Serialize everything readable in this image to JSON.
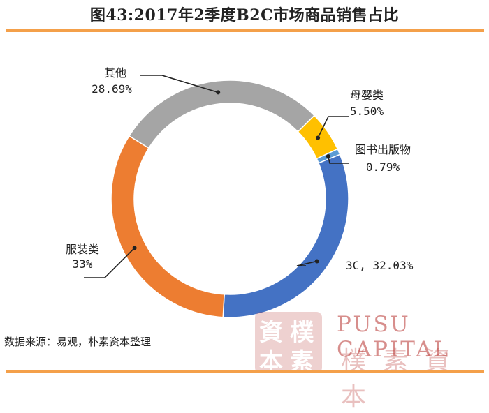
{
  "title": "图43:2017年2季度B2C市场商品销售占比",
  "source_note": "数据来源：易观，朴素资本整理",
  "watermark": {
    "seal_chars": [
      "資",
      "樸",
      "本",
      "素"
    ],
    "english": "PUSU CAPITAL",
    "chinese": "樸素資本",
    "color": "#b7332f"
  },
  "colors": {
    "accent_rule": "#f4a04a",
    "title_text": "#222222"
  },
  "chart_data": {
    "type": "pie",
    "variant": "donut",
    "title": "图43:2017年2季度B2C市场商品销售占比",
    "slices": [
      {
        "label": "3C",
        "value": 32.03,
        "display": "3C, 32.03%",
        "color": "#4472c4"
      },
      {
        "label": "服装类",
        "value": 33.0,
        "display": "33%",
        "color": "#ed7d31"
      },
      {
        "label": "其他",
        "value": 28.69,
        "display": "28.69%",
        "color": "#a5a5a5"
      },
      {
        "label": "母婴类",
        "value": 5.5,
        "display": "5.50%",
        "color": "#ffc000"
      },
      {
        "label": "图书出版物",
        "value": 0.79,
        "display": "0.79%",
        "color": "#5b9bd5"
      }
    ]
  }
}
